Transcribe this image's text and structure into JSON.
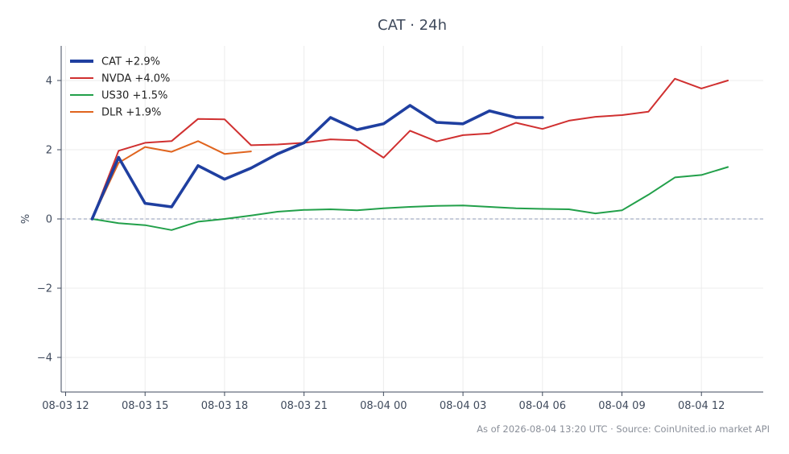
{
  "chart_data": {
    "type": "line",
    "title": "CAT · 24h",
    "ylabel": "%",
    "xlabel": "",
    "footer": "As of 2026-08-04 13:20 UTC · Source: CoinUnited.io market API",
    "x_ticks": [
      "08-03 12",
      "08-03 15",
      "08-03 18",
      "08-03 21",
      "08-04 00",
      "08-04 03",
      "08-04 06",
      "08-04 09",
      "08-04 12"
    ],
    "y_ticks": [
      -4,
      -2,
      0,
      2,
      4
    ],
    "y_tick_labels": [
      "−4",
      "−2",
      "0",
      "2",
      "4"
    ],
    "ylim": [
      -5,
      5
    ],
    "xlim": [
      "08-03 11:50",
      "08-04 14:20"
    ],
    "zero_line": true,
    "grid": true,
    "legend_position": "top-left",
    "series": [
      {
        "name": "CAT +2.9%",
        "color": "#1f3fa0",
        "x": [
          "08-03 13:00",
          "08-03 14:00",
          "08-03 15:00",
          "08-03 16:00",
          "08-03 17:00",
          "08-03 18:00",
          "08-03 19:00",
          "08-03 20:00",
          "08-03 21:00",
          "08-03 22:00",
          "08-03 23:00",
          "08-04 00:00",
          "08-04 01:00",
          "08-04 02:00",
          "08-04 03:00",
          "08-04 04:00",
          "08-04 05:00",
          "08-04 06:00"
        ],
        "values": [
          0,
          1.78,
          0.45,
          0.35,
          1.54,
          1.15,
          1.47,
          1.88,
          2.2,
          2.93,
          2.58,
          2.75,
          3.28,
          2.79,
          2.75,
          3.12,
          2.93,
          2.93
        ]
      },
      {
        "name": "NVDA +4.0%",
        "color": "#d03030",
        "x": [
          "08-03 13:00",
          "08-03 14:00",
          "08-03 15:00",
          "08-03 16:00",
          "08-03 17:00",
          "08-03 18:00",
          "08-03 19:00",
          "08-03 20:00",
          "08-03 21:00",
          "08-03 22:00",
          "08-03 23:00",
          "08-04 00:00",
          "08-04 01:00",
          "08-04 02:00",
          "08-04 03:00",
          "08-04 04:00",
          "08-04 05:00",
          "08-04 06:00",
          "08-04 07:00",
          "08-04 08:00",
          "08-04 09:00",
          "08-04 10:00",
          "08-04 11:00",
          "08-04 12:00",
          "08-04 13:00"
        ],
        "values": [
          0,
          1.97,
          2.2,
          2.25,
          2.89,
          2.88,
          2.13,
          2.15,
          2.2,
          2.3,
          2.27,
          1.77,
          2.55,
          2.24,
          2.42,
          2.47,
          2.78,
          2.6,
          2.84,
          2.95,
          3.0,
          3.1,
          4.05,
          3.77,
          4.0
        ]
      },
      {
        "name": "US30 +1.5%",
        "color": "#22a04a",
        "x": [
          "08-03 13:00",
          "08-03 14:00",
          "08-03 15:00",
          "08-03 16:00",
          "08-03 17:00",
          "08-03 18:00",
          "08-03 19:00",
          "08-03 20:00",
          "08-03 21:00",
          "08-03 22:00",
          "08-03 23:00",
          "08-04 00:00",
          "08-04 01:00",
          "08-04 02:00",
          "08-04 03:00",
          "08-04 04:00",
          "08-04 05:00",
          "08-04 06:00",
          "08-04 07:00",
          "08-04 08:00",
          "08-04 09:00",
          "08-04 10:00",
          "08-04 11:00",
          "08-04 12:00",
          "08-04 13:00"
        ],
        "values": [
          0,
          -0.12,
          -0.18,
          -0.32,
          -0.08,
          0.0,
          0.1,
          0.21,
          0.26,
          0.28,
          0.25,
          0.31,
          0.35,
          0.38,
          0.39,
          0.35,
          0.31,
          0.29,
          0.28,
          0.16,
          0.25,
          0.7,
          1.2,
          1.27,
          1.5
        ]
      },
      {
        "name": "DLR +1.9%",
        "color": "#e0641e",
        "x": [
          "08-03 13:00",
          "08-03 14:00",
          "08-03 15:00",
          "08-03 16:00",
          "08-03 17:00",
          "08-03 18:00",
          "08-03 19:00"
        ],
        "values": [
          0,
          1.62,
          2.08,
          1.94,
          2.25,
          1.88,
          1.95
        ]
      }
    ]
  }
}
